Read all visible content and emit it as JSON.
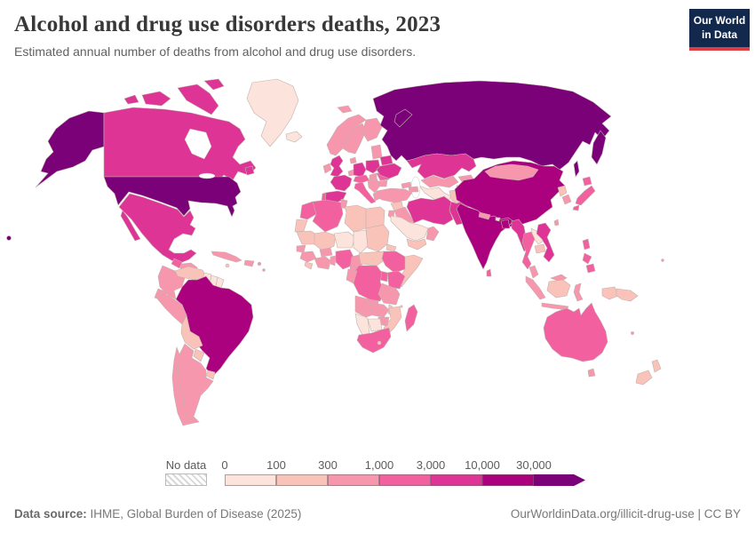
{
  "header": {
    "title": "Alcohol and drug use disorders deaths, 2023",
    "subtitle": "Estimated annual number of deaths from alcohol and drug use disorders.",
    "logo_line1": "Our World",
    "logo_line2": "in Data"
  },
  "legend": {
    "no_data_label": "No data",
    "tick_labels": [
      "0",
      "100",
      "300",
      "1,000",
      "3,000",
      "10,000",
      "30,000"
    ],
    "bin_colors": [
      "#fce3dc",
      "#fac3ba",
      "#f797ae",
      "#f2609f",
      "#dd3496",
      "#ab017e",
      "#7a0177"
    ]
  },
  "footer": {
    "source_label": "Data source:",
    "source_text": " IHME, Global Burden of Disease (2025)",
    "right_text": "OurWorldinData.org/illicit-drug-use | CC BY"
  },
  "chart_data": {
    "type": "choropleth",
    "title": "Alcohol and drug use disorders deaths, 2023",
    "subtitle": "Estimated annual number of deaths from alcohol and drug use disorders.",
    "year": "2023",
    "unit": "deaths",
    "legend_position": "bottom",
    "no_data_style": "hatched",
    "open_ended_upper_bin": true,
    "bin_edges": [
      0,
      100,
      300,
      1000,
      3000,
      10000,
      30000
    ],
    "bin_ranges": [
      "0-100",
      "100-300",
      "300-1,000",
      "1,000-3,000",
      "3,000-10,000",
      "10,000-30,000",
      "30,000+"
    ],
    "bin_colors": [
      "#fce3dc",
      "#fac3ba",
      "#f797ae",
      "#f2609f",
      "#dd3496",
      "#ab017e",
      "#7a0177"
    ],
    "highest_bin_regions": [
      "United States",
      "Russia"
    ],
    "second_bin_regions": [
      "Brazil",
      "China",
      "India",
      "Bangladesh"
    ],
    "third_bin_regions": [
      "Canada",
      "Mexico",
      "United Kingdom",
      "France",
      "Spain",
      "Germany",
      "Poland",
      "Ukraine",
      "Belarus",
      "Iran",
      "Pakistan",
      "Kazakhstan",
      "Myanmar",
      "Vietnam"
    ]
  },
  "map": {
    "regions": {
      "alaska": 6,
      "hawaii": 6,
      "usa": 6,
      "canada": 4,
      "greenland": 0,
      "mexico": 4,
      "guatemala": 3,
      "honduras-nicaragua": 2,
      "costa-rica-panama": 1,
      "cuba": 2,
      "hispaniola": 2,
      "jamaica": 1,
      "puerto-rico": 2,
      "lesser-antilles": 2,
      "colombia": 2,
      "venezuela": 1,
      "guyana": 0,
      "suriname": 0,
      "french-guiana": 0,
      "ecuador": 2,
      "peru": 2,
      "brazil": 5,
      "bolivia": 1,
      "paraguay": 1,
      "uruguay": 1,
      "argentina": 2,
      "chile": 2,
      "iceland": 0,
      "svalbard": 2,
      "norway": 2,
      "sweden": 2,
      "finland": 2,
      "denmark": 2,
      "uk": 4,
      "ireland": 2,
      "france": 4,
      "spain": 4,
      "portugal": 3,
      "benelux": 2,
      "germany": 4,
      "poland": 4,
      "czech-austria": 3,
      "italy": 3,
      "balkans": 2,
      "greece": 2,
      "romania": 3,
      "hungary": 2,
      "bulgaria": 2,
      "baltics": 2,
      "belarus": 4,
      "ukraine": 4,
      "russia": 6,
      "novaya-zemlya": 6,
      "kamchatka": 6,
      "sakhalin": 6,
      "kazakhstan": 4,
      "uzbekistan": 2,
      "turkmenistan": 0,
      "kyrgyzstan": 2,
      "tajikistan": 2,
      "georgia": 2,
      "azerbaijan": 2,
      "turkey": 2,
      "syria": 1,
      "iraq": 2,
      "iran": 4,
      "afghanistan": 1,
      "pakistan": 4,
      "israel-jordan": 2,
      "saudi-arabia": 0,
      "yemen": 1,
      "oman": 2,
      "morocco": 3,
      "western-sahara": 1,
      "algeria": 3,
      "tunisia": 2,
      "libya": 1,
      "egypt": 1,
      "mauritania": 1,
      "mali": 1,
      "niger": 0,
      "chad": 0,
      "sudan": 1,
      "eritrea": 1,
      "senegal": 2,
      "guinea": 2,
      "sierra-leone-liberia": 1,
      "ivory-coast-ghana": 2,
      "burkina-faso": 2,
      "togo-benin": 2,
      "nigeria": 3,
      "cameroon": 2,
      "car-south-sudan": 1,
      "ethiopia": 3,
      "somalia": 1,
      "kenya": 3,
      "uganda": 3,
      "drc": 3,
      "congo-gabon": 2,
      "tanzania": 2,
      "angola": 2,
      "zambia": 2,
      "malawi": 1,
      "mozambique": 1,
      "zimbabwe": 2,
      "botswana": 0,
      "namibia": 0,
      "south-africa": 3,
      "lesotho": 1,
      "madagascar": 3,
      "comoros": 1,
      "china": 5,
      "mongolia": 2,
      "north-korea": 1,
      "south-korea": 2,
      "japan": 3,
      "taiwan": 2,
      "india": 5,
      "nepal": 2,
      "bhutan": 0,
      "bangladesh": 5,
      "sri-lanka": 3,
      "myanmar": 4,
      "thailand": 3,
      "laos": 0,
      "cambodia": 1,
      "vietnam": 4,
      "malaysia": 2,
      "indonesia": 2,
      "indonesia-borneo": 1,
      "indonesia-papua": 1,
      "png": 1,
      "philippines": 3,
      "australia": 3,
      "tasmania": 2,
      "new-zealand": 1,
      "fiji": 2,
      "new-caledonia": 2
    }
  }
}
